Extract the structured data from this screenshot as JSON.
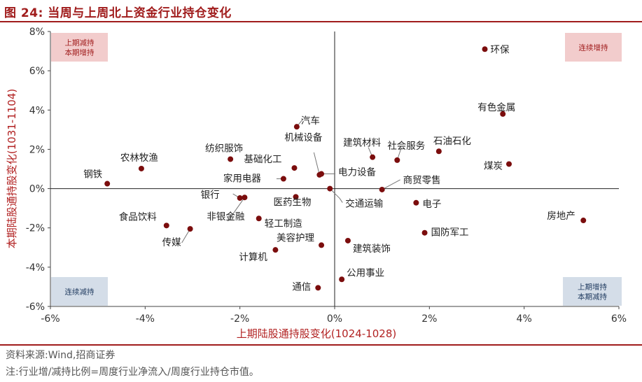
{
  "title": "图 24:  当周与上周北上资金行业持仓变化",
  "footer": {
    "source": "资料来源:Wind,招商证券",
    "note": "注:行业增/减持比例=周度行业净流入/周度行业持仓市值。"
  },
  "quadrants": {
    "top_left": [
      "上期减持",
      "本期增持"
    ],
    "top_right": [
      "连续增持"
    ],
    "bottom_left": [
      "连续减持"
    ],
    "bottom_right": [
      "上期增持",
      "本期减持"
    ]
  },
  "colors": {
    "accent": "#a01c1c",
    "point": "#7b0d0d",
    "quadrant_red": "#f2cccc",
    "quadrant_blue": "#d4dde8"
  },
  "chart_data": {
    "type": "scatter",
    "xlabel": "上期陆股通持股变化(1024-1028)",
    "ylabel": "本期陆股通持股变化(1031-1104)",
    "xlim": [
      -6,
      6
    ],
    "ylim": [
      -6,
      8
    ],
    "x_ticks": [
      "-6%",
      "-4%",
      "-2%",
      "0%",
      "2%",
      "4%",
      "6%"
    ],
    "y_ticks": [
      "8%",
      "6%",
      "4%",
      "2%",
      "0%",
      "-2%",
      "-4%",
      "-6%"
    ],
    "points": [
      {
        "name": "环保",
        "x": 3.17,
        "y": 7.1
      },
      {
        "name": "有色金属",
        "x": 3.55,
        "y": 3.8
      },
      {
        "name": "煤炭",
        "x": 3.68,
        "y": 1.25
      },
      {
        "name": "石油石化",
        "x": 2.2,
        "y": 1.9
      },
      {
        "name": "社会服务",
        "x": 1.32,
        "y": 1.45
      },
      {
        "name": "建筑材料",
        "x": 0.8,
        "y": 1.6
      },
      {
        "name": "商贸零售",
        "x": 1.0,
        "y": -0.05
      },
      {
        "name": "电子",
        "x": 1.72,
        "y": -0.72
      },
      {
        "name": "国防军工",
        "x": 1.9,
        "y": -2.25
      },
      {
        "name": "房地产",
        "x": 5.25,
        "y": -1.62
      },
      {
        "name": "建筑装饰",
        "x": 0.28,
        "y": -2.65
      },
      {
        "name": "公用事业",
        "x": 0.15,
        "y": -4.62
      },
      {
        "name": "通信",
        "x": -0.35,
        "y": -5.05
      },
      {
        "name": "美容护理",
        "x": -0.28,
        "y": -2.88
      },
      {
        "name": "计算机",
        "x": -1.25,
        "y": -3.12
      },
      {
        "name": "交通运输",
        "x": -0.1,
        "y": 0.0
      },
      {
        "name": "电力设备",
        "x": -0.28,
        "y": 0.75
      },
      {
        "name": "机械设备",
        "x": -0.32,
        "y": 0.7
      },
      {
        "name": "汽车",
        "x": -0.8,
        "y": 3.15
      },
      {
        "name": "基础化工",
        "x": -0.85,
        "y": 1.05
      },
      {
        "name": "家用电器",
        "x": -1.08,
        "y": 0.5
      },
      {
        "name": "医药生物",
        "x": -0.82,
        "y": -0.42
      },
      {
        "name": "轻工制造",
        "x": -1.6,
        "y": -1.52
      },
      {
        "name": "银行",
        "x": -2.0,
        "y": -0.48
      },
      {
        "name": "非银金融",
        "x": -1.9,
        "y": -0.45
      },
      {
        "name": "纺织服饰",
        "x": -2.2,
        "y": 1.5
      },
      {
        "name": "农林牧渔",
        "x": -4.08,
        "y": 1.02
      },
      {
        "name": "钢铁",
        "x": -4.8,
        "y": 0.25
      },
      {
        "name": "食品饮料",
        "x": -3.55,
        "y": -1.88
      },
      {
        "name": "传媒",
        "x": -3.05,
        "y": -2.05
      }
    ]
  }
}
